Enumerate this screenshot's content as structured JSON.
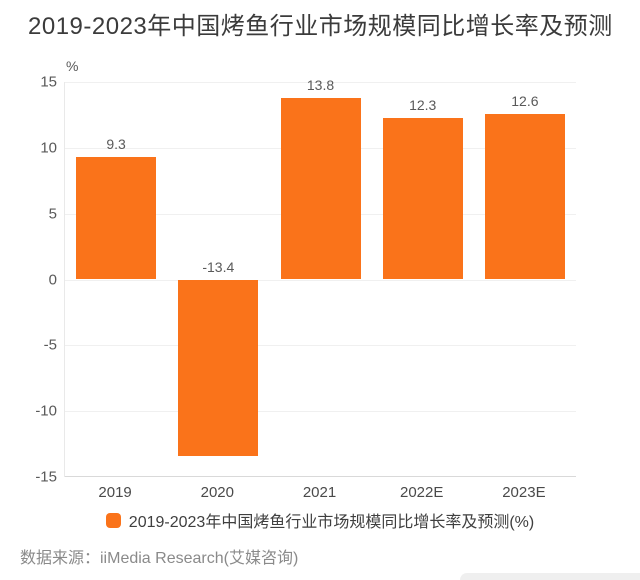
{
  "title": "2019-2023年中国烤鱼行业市场规模同比增长率及预测",
  "chart_data": {
    "type": "bar",
    "categories": [
      "2019",
      "2020",
      "2021",
      "2022E",
      "2023E"
    ],
    "values": [
      9.3,
      -13.4,
      13.8,
      12.3,
      12.6
    ],
    "title": "2019-2023年中国烤鱼行业市场规模同比增长率及预测",
    "xlabel": "",
    "ylabel": "%",
    "unit_label": "%",
    "ylim": [
      -15,
      15
    ],
    "yticks": [
      15,
      10,
      5,
      0,
      -5,
      -10,
      -15
    ],
    "grid": true,
    "legend": "2019-2023年中国烤鱼行业市场规模同比增长率及预测(%)",
    "legend_position": "bottom-center",
    "bar_color": "#fa731a"
  },
  "source": "数据来源：iiMedia Research(艾媒咨询)"
}
